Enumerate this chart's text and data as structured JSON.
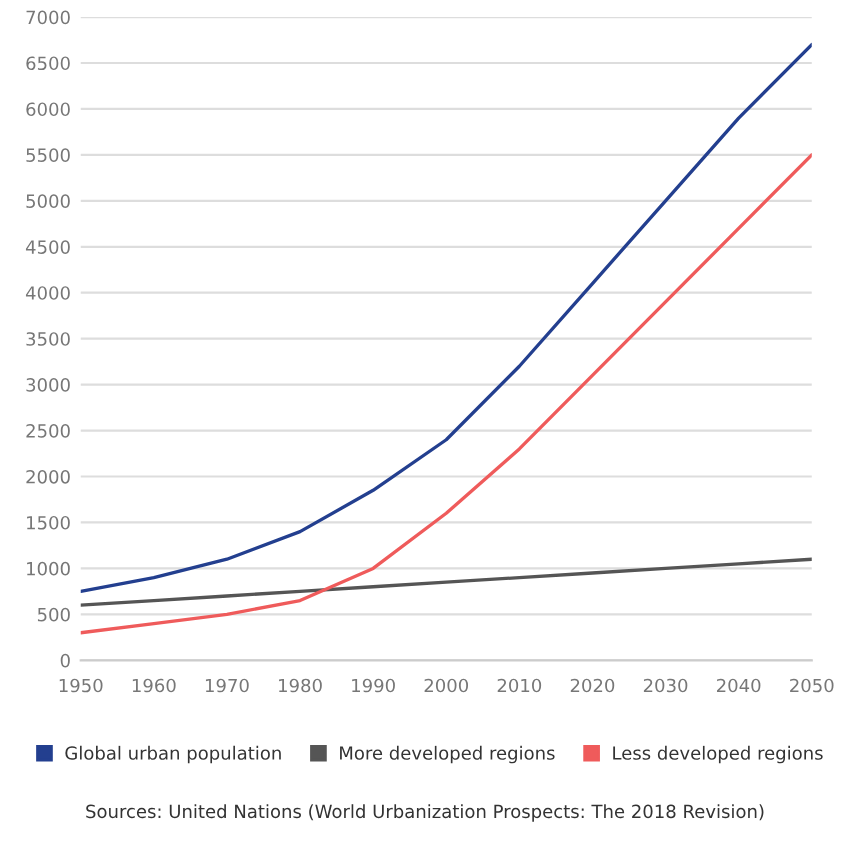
{
  "chart_data": {
    "type": "line",
    "x": [
      1950,
      1960,
      1970,
      1980,
      1990,
      2000,
      2010,
      2020,
      2030,
      2040,
      2050
    ],
    "series": [
      {
        "name": "Global urban population",
        "color": "#233f8f",
        "values": [
          750,
          900,
          1100,
          1400,
          1850,
          2400,
          3200,
          4100,
          5000,
          5900,
          6700
        ]
      },
      {
        "name": "More developed regions",
        "color": "#555555",
        "values": [
          600,
          650,
          700,
          750,
          800,
          850,
          900,
          950,
          1000,
          1050,
          1100
        ]
      },
      {
        "name": "Less developed regions",
        "color": "#ef5b5b",
        "values": [
          300,
          400,
          500,
          650,
          1000,
          1600,
          2300,
          3100,
          3900,
          4700,
          5500
        ]
      }
    ],
    "xlim": [
      1950,
      2050
    ],
    "xticks": [
      1950,
      1960,
      1970,
      1980,
      1990,
      2000,
      2010,
      2020,
      2030,
      2040,
      2050
    ],
    "ylim": [
      0,
      7000
    ],
    "yticks": [
      0,
      500,
      1000,
      1500,
      2000,
      2500,
      3000,
      3500,
      4000,
      4500,
      5000,
      5500,
      6000,
      6500,
      7000
    ],
    "grid": "y",
    "legend": "bottom",
    "marker": "none",
    "line_style": "solid",
    "annotations": [
      "Sources: United Nations (World Urbanization Prospects: The 2018 Revision)"
    ]
  }
}
